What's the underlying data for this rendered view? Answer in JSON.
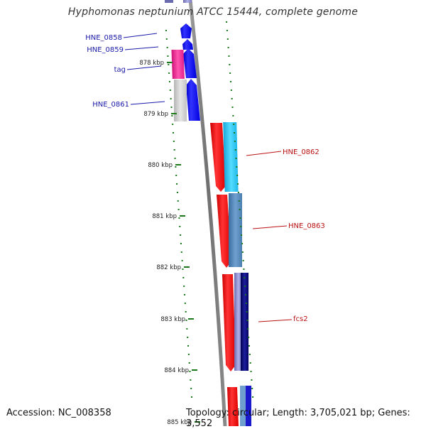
{
  "title": "Hyphomonas neptunium ATCC 15444, complete genome",
  "footer": {
    "accession": "Accession: NC_008358",
    "topology": "Topology: circular; Length: 3,705,021 bp; Genes: 3,552"
  },
  "colors": {
    "backbone": "#7a7a7a",
    "tick": "#1a7a1a",
    "forward_label": "#1a1aaa",
    "reverse_label": "#bb1111"
  },
  "ticks": [
    "878 kbp",
    "879 kbp",
    "880 kbp",
    "881 kbp",
    "882 kbp",
    "883 kbp",
    "884 kbp",
    "885 kbp"
  ],
  "genes_left": [
    {
      "label": "HNE_0858",
      "color": "blue"
    },
    {
      "label": "HNE_0859",
      "color": "blue"
    },
    {
      "label": "tag",
      "color": "blue"
    },
    {
      "label": "HNE_0861",
      "color": "blue"
    }
  ],
  "genes_right": [
    {
      "label": "HNE_0862",
      "color": "red"
    },
    {
      "label": "HNE_0863",
      "color": "red"
    },
    {
      "label": "fcs2",
      "color": "red"
    }
  ]
}
